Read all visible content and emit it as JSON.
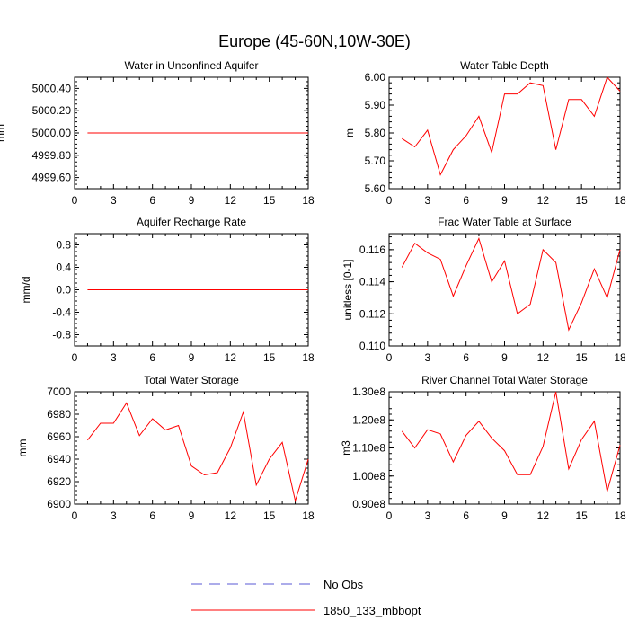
{
  "title": "Europe (45-60N,10W-30E)",
  "colors": {
    "model": "#ff0000",
    "obs": "#5a5ad6",
    "axis": "#000000"
  },
  "legend": [
    {
      "label": "No Obs",
      "style": "dashed",
      "color": "#5a5ad6"
    },
    {
      "label": "1850_133_mbbopt",
      "style": "solid",
      "color": "#ff0000"
    }
  ],
  "chart_data": [
    {
      "type": "line",
      "title": "Water in Unconfined Aquifer",
      "ylabel": "mm",
      "xlim": [
        0,
        18
      ],
      "ylim": [
        4999.5,
        5000.5
      ],
      "xticks": [
        0,
        3,
        6,
        9,
        12,
        15,
        18
      ],
      "yticks": [
        4999.6,
        4999.8,
        5000.0,
        5000.2,
        5000.4
      ],
      "yticklabels": [
        "4999.60",
        "4999.80",
        "5000.00",
        "5000.20",
        "5000.40"
      ],
      "series": [
        {
          "name": "1850_133_mbbopt",
          "x": [
            1,
            2,
            3,
            4,
            5,
            6,
            7,
            8,
            9,
            10,
            11,
            12,
            13,
            14,
            15,
            16,
            17,
            18
          ],
          "values": [
            5000,
            5000,
            5000,
            5000,
            5000,
            5000,
            5000,
            5000,
            5000,
            5000,
            5000,
            5000,
            5000,
            5000,
            5000,
            5000,
            5000,
            5000
          ]
        }
      ]
    },
    {
      "type": "line",
      "title": "Water Table Depth",
      "ylabel": "m",
      "xlim": [
        0,
        18
      ],
      "ylim": [
        5.6,
        6.0
      ],
      "xticks": [
        0,
        3,
        6,
        9,
        12,
        15,
        18
      ],
      "yticks": [
        5.6,
        5.7,
        5.8,
        5.9,
        6.0
      ],
      "yticklabels": [
        "5.60",
        "5.70",
        "5.80",
        "5.90",
        "6.00"
      ],
      "series": [
        {
          "name": "1850_133_mbbopt",
          "x": [
            1,
            2,
            3,
            4,
            5,
            6,
            7,
            8,
            9,
            10,
            11,
            12,
            13,
            14,
            15,
            16,
            17,
            18
          ],
          "values": [
            5.78,
            5.75,
            5.81,
            5.65,
            5.74,
            5.79,
            5.86,
            5.73,
            5.94,
            5.94,
            5.98,
            5.97,
            5.74,
            5.92,
            5.92,
            5.86,
            6.0,
            5.95
          ]
        }
      ]
    },
    {
      "type": "line",
      "title": "Aquifer Recharge Rate",
      "ylabel": "mm/d",
      "xlim": [
        0,
        18
      ],
      "ylim": [
        -1.0,
        1.0
      ],
      "xticks": [
        0,
        3,
        6,
        9,
        12,
        15,
        18
      ],
      "yticks": [
        -0.8,
        -0.4,
        0.0,
        0.4,
        0.8
      ],
      "yticklabels": [
        "-0.8",
        "-0.4",
        "0.0",
        "0.4",
        "0.8"
      ],
      "series": [
        {
          "name": "1850_133_mbbopt",
          "x": [
            1,
            2,
            3,
            4,
            5,
            6,
            7,
            8,
            9,
            10,
            11,
            12,
            13,
            14,
            15,
            16,
            17,
            18
          ],
          "values": [
            0,
            0,
            0,
            0,
            0,
            0,
            0,
            0,
            0,
            0,
            0,
            0,
            0,
            0,
            0,
            0,
            0,
            0
          ]
        }
      ]
    },
    {
      "type": "line",
      "title": "Frac Water Table at Surface",
      "ylabel": "unitless [0-1]",
      "xlim": [
        0,
        18
      ],
      "ylim": [
        0.11,
        0.117
      ],
      "xticks": [
        0,
        3,
        6,
        9,
        12,
        15,
        18
      ],
      "yticks": [
        0.11,
        0.112,
        0.114,
        0.116
      ],
      "yticklabels": [
        "0.110",
        "0.112",
        "0.114",
        "0.116"
      ],
      "series": [
        {
          "name": "1850_133_mbbopt",
          "x": [
            1,
            2,
            3,
            4,
            5,
            6,
            7,
            8,
            9,
            10,
            11,
            12,
            13,
            14,
            15,
            16,
            17,
            18
          ],
          "values": [
            0.1149,
            0.1164,
            0.1158,
            0.1154,
            0.1131,
            0.115,
            0.1167,
            0.114,
            0.1153,
            0.112,
            0.1126,
            0.116,
            0.1152,
            0.111,
            0.1127,
            0.1148,
            0.113,
            0.116
          ]
        }
      ]
    },
    {
      "type": "line",
      "title": "Total Water Storage",
      "ylabel": "mm",
      "xlim": [
        0,
        18
      ],
      "ylim": [
        6900,
        7000
      ],
      "xticks": [
        0,
        3,
        6,
        9,
        12,
        15,
        18
      ],
      "yticks": [
        6900,
        6920,
        6940,
        6960,
        6980,
        7000
      ],
      "yticklabels": [
        "6900",
        "6920",
        "6940",
        "6960",
        "6980",
        "7000"
      ],
      "series": [
        {
          "name": "1850_133_mbbopt",
          "x": [
            1,
            2,
            3,
            4,
            5,
            6,
            7,
            8,
            9,
            10,
            11,
            12,
            13,
            14,
            15,
            16,
            17,
            18
          ],
          "values": [
            6957,
            6972,
            6972,
            6990,
            6961,
            6976,
            6966,
            6970,
            6934,
            6926,
            6928,
            6950,
            6982,
            6917,
            6940,
            6955,
            6903,
            6940
          ]
        }
      ]
    },
    {
      "type": "line",
      "title": "River Channel Total Water Storage",
      "ylabel": "m3",
      "xlim": [
        0,
        18
      ],
      "ylim": [
        90000000.0,
        130000000.0
      ],
      "xticks": [
        0,
        3,
        6,
        9,
        12,
        15,
        18
      ],
      "yticks": [
        90000000.0,
        100000000.0,
        110000000.0,
        120000000.0,
        130000000.0
      ],
      "yticklabels": [
        "0.90e8",
        "1.00e8",
        "1.10e8",
        "1.20e8",
        "1.30e8"
      ],
      "series": [
        {
          "name": "1850_133_mbbopt",
          "x": [
            1,
            2,
            3,
            4,
            5,
            6,
            7,
            8,
            9,
            10,
            11,
            12,
            13,
            14,
            15,
            16,
            17,
            18
          ],
          "values": [
            116000000.0,
            110000000.0,
            116500000.0,
            115000000.0,
            105000000.0,
            114500000.0,
            119500000.0,
            113500000.0,
            109000000.0,
            100500000.0,
            100500000.0,
            110500000.0,
            130000000.0,
            102500000.0,
            113000000.0,
            119500000.0,
            94500000.0,
            111000000.0
          ]
        }
      ]
    }
  ]
}
